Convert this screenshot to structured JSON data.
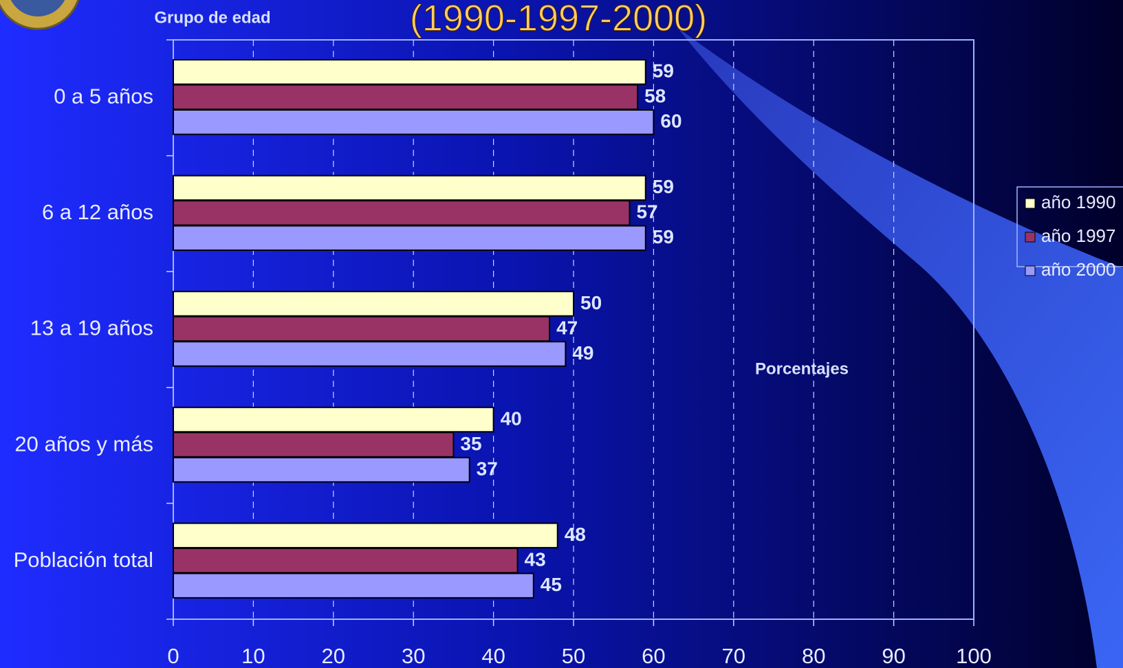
{
  "chart_data": {
    "type": "hbar",
    "title": "(1990-1997-2000)",
    "y_label": "Grupo de edad",
    "x_label": "Porcentajes",
    "categories": [
      "0 a 5 años",
      "6 a 12 años",
      "13 a 19 años",
      "20 años y más",
      "Población total"
    ],
    "series": [
      {
        "name": "año 1990",
        "color": "#ffffcc",
        "values": [
          59,
          59,
          50,
          40,
          48
        ]
      },
      {
        "name": "año 1997",
        "color": "#993366",
        "values": [
          58,
          57,
          47,
          35,
          43
        ]
      },
      {
        "name": "año 2000",
        "color": "#9999ff",
        "values": [
          60,
          59,
          49,
          37,
          45
        ]
      }
    ],
    "xlim": [
      0,
      100
    ],
    "xticks": [
      0,
      10,
      20,
      30,
      40,
      50,
      60,
      70,
      80,
      90,
      100
    ],
    "grid": true,
    "legend": "right"
  }
}
